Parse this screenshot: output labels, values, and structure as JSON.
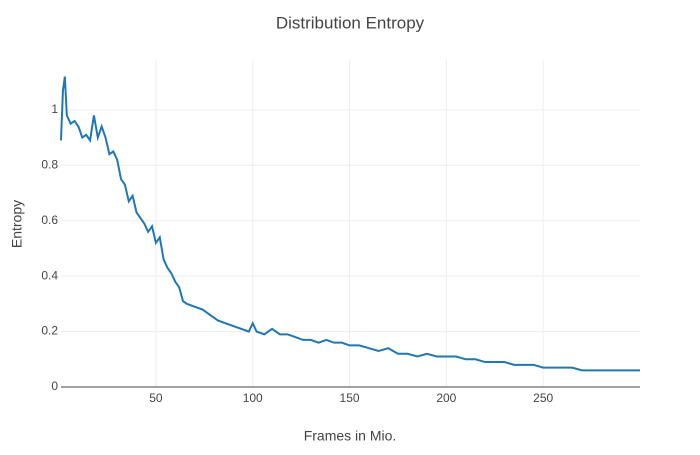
{
  "chart_data": {
    "type": "line",
    "title": "Distribution Entropy",
    "x_label": "Frames in Mio.",
    "y_label": "Entropy",
    "series": [
      {
        "name": "Entropy",
        "color": "#1f77b4",
        "x": [
          1,
          2,
          3,
          4,
          6,
          8,
          10,
          12,
          14,
          16,
          18,
          20,
          22,
          24,
          26,
          28,
          30,
          32,
          34,
          36,
          38,
          40,
          42,
          44,
          46,
          48,
          50,
          52,
          54,
          56,
          58,
          60,
          62,
          64,
          66,
          70,
          74,
          78,
          82,
          86,
          90,
          94,
          98,
          100,
          102,
          106,
          110,
          114,
          118,
          122,
          126,
          130,
          134,
          138,
          142,
          146,
          150,
          155,
          160,
          165,
          170,
          175,
          180,
          185,
          190,
          195,
          200,
          205,
          210,
          215,
          220,
          225,
          230,
          235,
          240,
          245,
          250,
          255,
          260,
          265,
          270,
          275,
          280,
          285,
          290,
          295,
          300
        ],
        "values": [
          0.89,
          1.07,
          1.12,
          0.98,
          0.95,
          0.96,
          0.94,
          0.9,
          0.91,
          0.89,
          0.98,
          0.9,
          0.94,
          0.9,
          0.84,
          0.85,
          0.82,
          0.75,
          0.73,
          0.67,
          0.69,
          0.63,
          0.61,
          0.59,
          0.56,
          0.58,
          0.52,
          0.54,
          0.46,
          0.43,
          0.41,
          0.38,
          0.36,
          0.31,
          0.3,
          0.29,
          0.28,
          0.26,
          0.24,
          0.23,
          0.22,
          0.21,
          0.2,
          0.23,
          0.2,
          0.19,
          0.21,
          0.19,
          0.19,
          0.18,
          0.17,
          0.17,
          0.16,
          0.17,
          0.16,
          0.16,
          0.15,
          0.15,
          0.14,
          0.13,
          0.14,
          0.12,
          0.12,
          0.11,
          0.12,
          0.11,
          0.11,
          0.11,
          0.1,
          0.1,
          0.09,
          0.09,
          0.09,
          0.08,
          0.08,
          0.08,
          0.07,
          0.07,
          0.07,
          0.07,
          0.06,
          0.06,
          0.06,
          0.06,
          0.06,
          0.06,
          0.06
        ]
      }
    ],
    "xlim": [
      1,
      300
    ],
    "ylim": [
      0,
      1.18
    ],
    "xticks": [
      50,
      100,
      150,
      200,
      250
    ],
    "yticks": [
      0,
      0.2,
      0.4,
      0.6,
      0.8,
      1
    ],
    "grid": true
  }
}
